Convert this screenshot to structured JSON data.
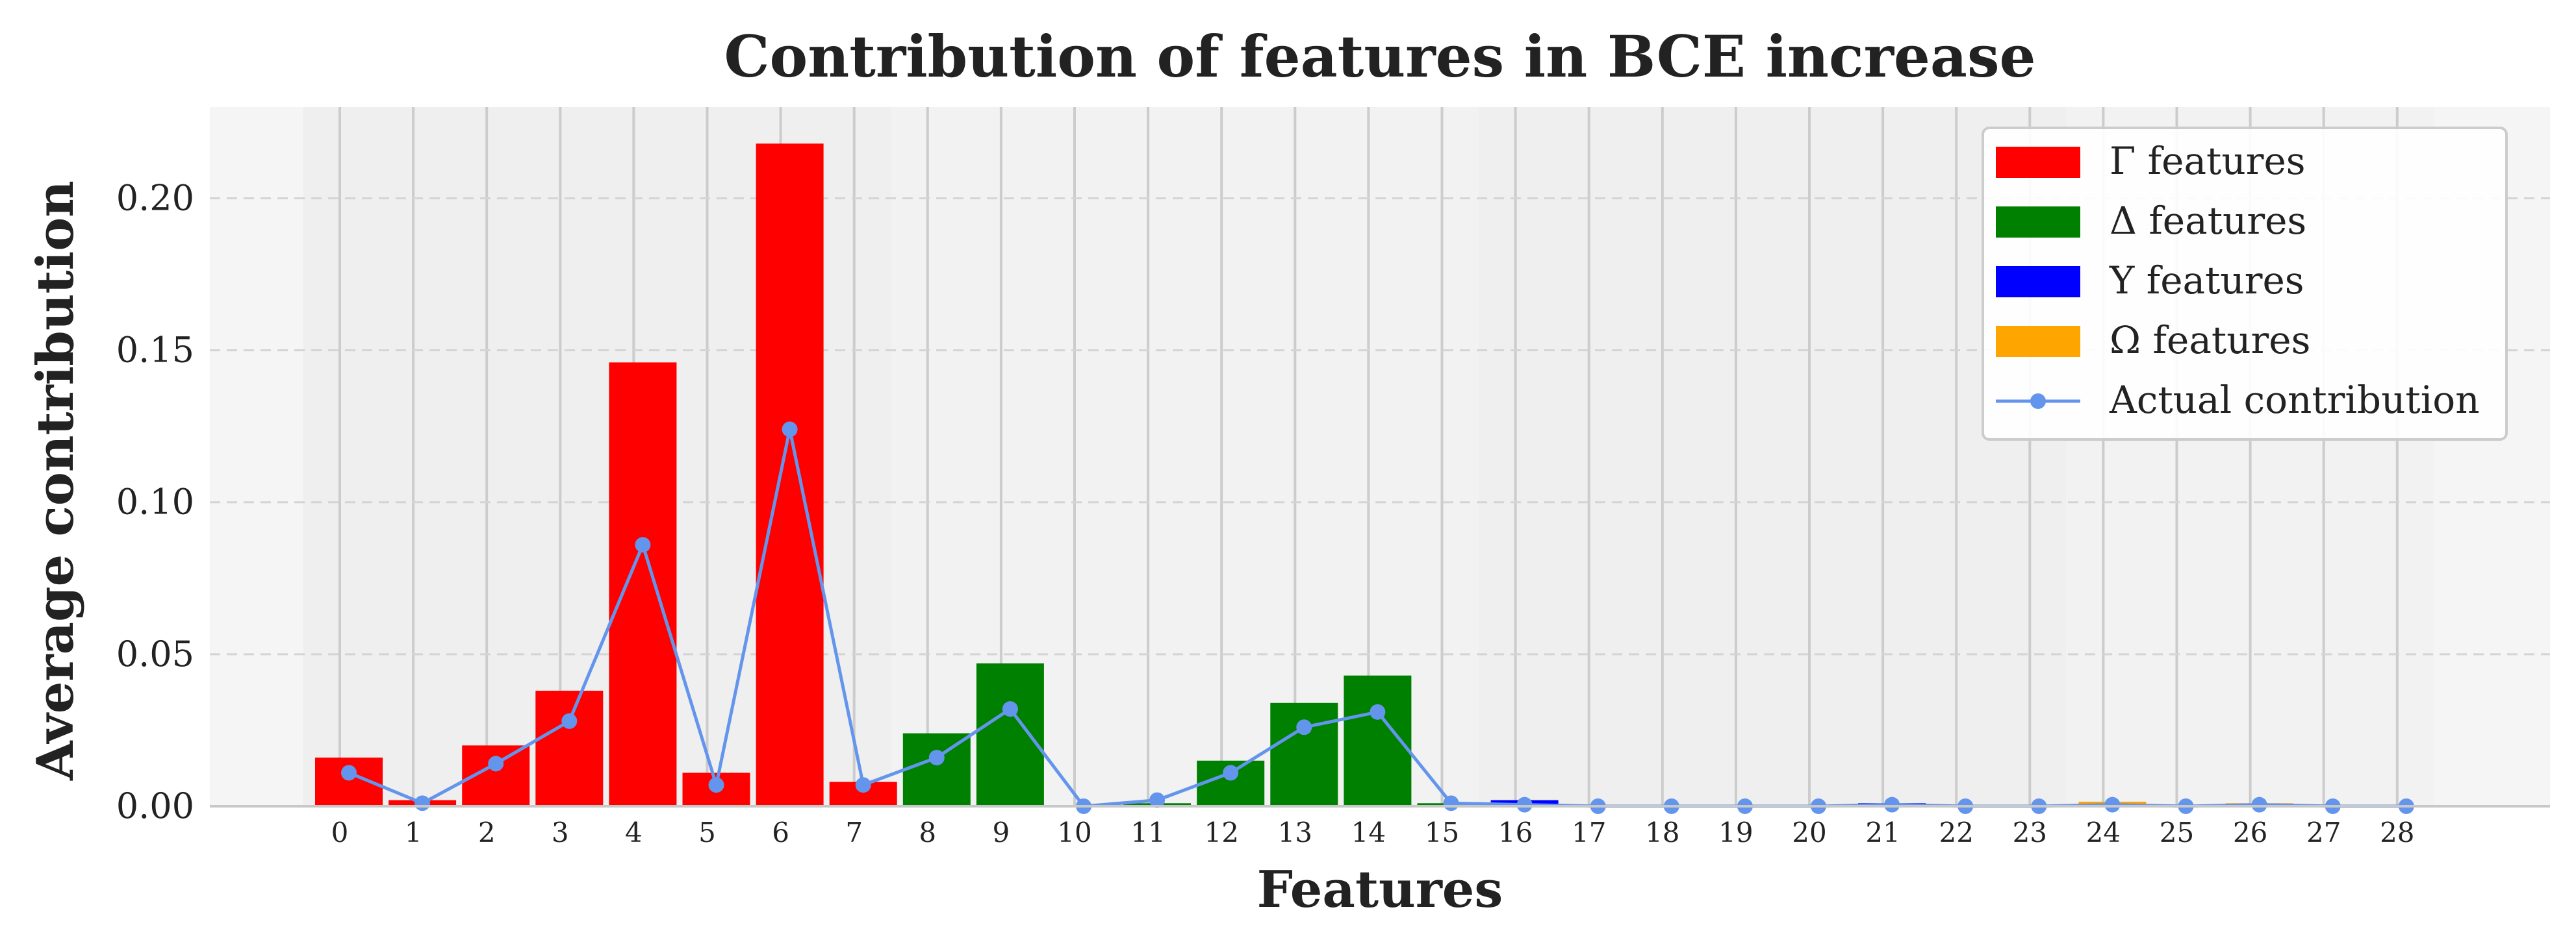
{
  "chart_data": {
    "type": "bar",
    "title": "Contribution of features in BCE increase",
    "xlabel": "Features",
    "ylabel": "Average contribution",
    "categories": [
      "0",
      "1",
      "2",
      "3",
      "4",
      "5",
      "6",
      "7",
      "8",
      "9",
      "10",
      "11",
      "12",
      "13",
      "14",
      "15",
      "16",
      "17",
      "18",
      "19",
      "20",
      "21",
      "22",
      "23",
      "24",
      "25",
      "26",
      "27",
      "28"
    ],
    "ylim": [
      0,
      0.23
    ],
    "yticks": [
      "0.00",
      "0.05",
      "0.10",
      "0.15",
      "0.20"
    ],
    "ytick_values": [
      0,
      0.05,
      0.1,
      0.15,
      0.2
    ],
    "grid": "on",
    "legend_position": "top-right",
    "groups": [
      {
        "name": "Γ features",
        "color": "#ff0000",
        "from": 0,
        "to": 7
      },
      {
        "name": "Δ features",
        "color": "#008000",
        "from": 8,
        "to": 15
      },
      {
        "name": "Υ features",
        "color": "#0000ff",
        "from": 16,
        "to": 23
      },
      {
        "name": "Ω features",
        "color": "#ffa500",
        "from": 24,
        "to": 28
      }
    ],
    "series": [
      {
        "name": "",
        "type": "bar",
        "values": [
          0.016,
          0.002,
          0.02,
          0.038,
          0.146,
          0.011,
          0.218,
          0.008,
          0.024,
          0.047,
          0.0,
          0.001,
          0.015,
          0.034,
          0.043,
          0.001,
          0.002,
          0.0,
          0.0,
          0.0,
          0.0,
          0.001,
          0.0,
          0.0,
          0.0015,
          0.0,
          0.001,
          0.0,
          0.0
        ]
      },
      {
        "name": "Actual contribution",
        "type": "line",
        "color": "#6495ed",
        "values": [
          0.011,
          0.001,
          0.014,
          0.028,
          0.086,
          0.007,
          0.124,
          0.007,
          0.016,
          0.032,
          0.0,
          0.002,
          0.011,
          0.026,
          0.031,
          0.001,
          0.0005,
          0.0,
          0.0,
          0.0,
          0.0,
          0.0005,
          0.0,
          0.0,
          0.0005,
          0.0,
          0.0005,
          0.0,
          0.0
        ]
      }
    ]
  }
}
